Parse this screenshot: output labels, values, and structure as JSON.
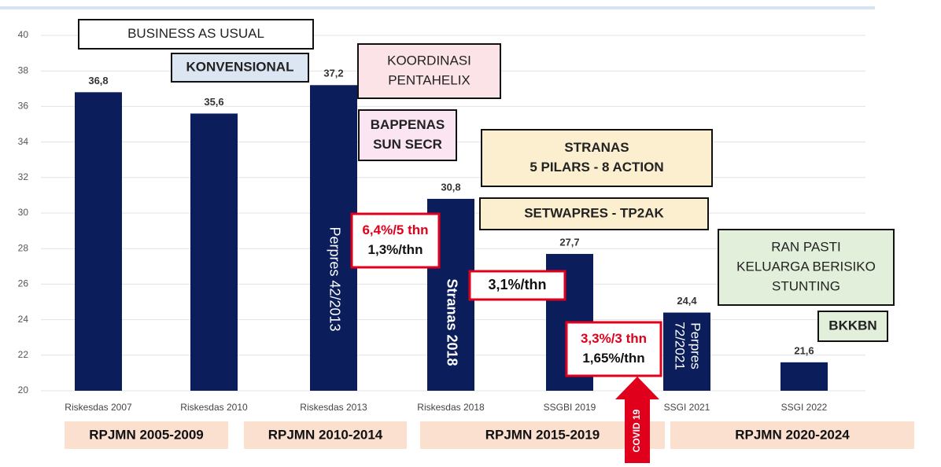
{
  "chart_data": {
    "type": "bar",
    "categories": [
      "Riskesdas 2007",
      "Riskesdas 2010",
      "Riskesdas 2013",
      "Riskesdas 2018",
      "SSGBI 2019",
      "SSGI 2021",
      "SSGI 2022"
    ],
    "values": [
      36.8,
      35.6,
      37.2,
      30.8,
      27.7,
      24.4,
      21.6
    ],
    "value_labels": [
      "36,8",
      "35,6",
      "37,2",
      "30,8",
      "27,7",
      "24,4",
      "21,6"
    ],
    "color": "#0b1e5b",
    "ylim": [
      20,
      40
    ],
    "yticks": [
      20,
      22,
      24,
      26,
      28,
      30,
      32,
      34,
      36,
      38,
      40
    ],
    "grid": true
  },
  "boxes": [
    {
      "lines": [
        "BUSINESS AS USUAL"
      ]
    },
    {
      "lines": [
        "KONVENSIONAL"
      ]
    },
    {
      "lines": [
        "KOORDINASI",
        "PENTAHELIX"
      ]
    },
    {
      "lines": [
        "BAPPENAS",
        "SUN SECR"
      ]
    },
    {
      "lines": [
        "STRANAS",
        "5 PILARS - 8 ACTION"
      ]
    },
    {
      "lines": [
        "SETWAPRES - TP2AK"
      ]
    },
    {
      "lines": [
        "RAN PASTI",
        "KELUARGA BERISIKO",
        "STUNTING"
      ]
    },
    {
      "lines": [
        "BKKBN"
      ]
    },
    {
      "lines": [
        "6,4%/5 thn",
        "1,3%/thn"
      ]
    },
    {
      "lines": [
        "3,1%/thn"
      ]
    },
    {
      "lines": [
        "3,3%/3 thn",
        "1,65%/thn"
      ]
    }
  ],
  "bar_texts": [
    {
      "lines": [
        "Perpres 42/2013"
      ]
    },
    {
      "lines": [
        "Stranas 2018"
      ]
    },
    {
      "lines": [
        "Perpres",
        "72/2021"
      ]
    }
  ],
  "periods": [
    "RPJMN 2005-2009",
    "RPJMN 2010-2014",
    "RPJMN 2015-2019",
    "RPJMN 2020-2024"
  ],
  "covid": "COVID 19"
}
